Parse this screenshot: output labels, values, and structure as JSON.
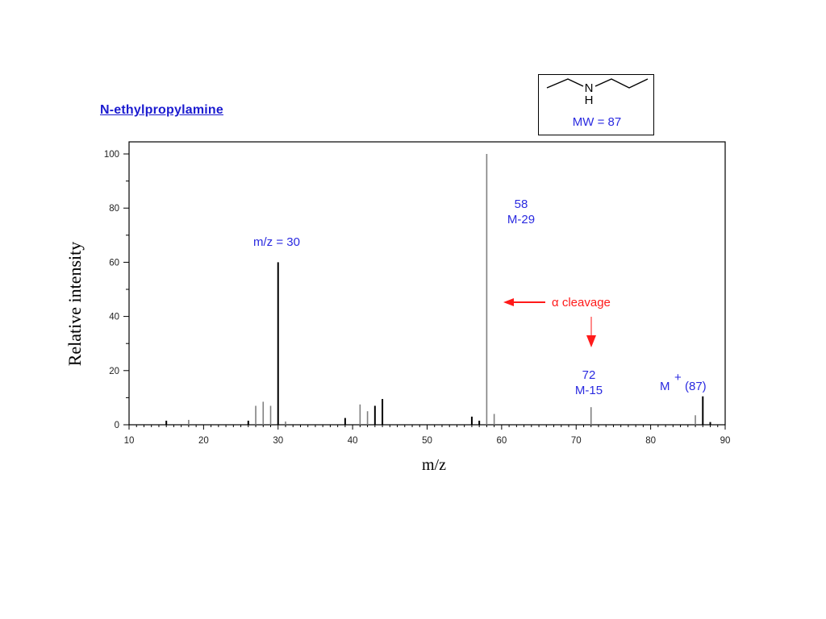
{
  "title": "N-ethylpropylamine",
  "structure": {
    "nh_label": "N",
    "h_label": "H",
    "mw_label": "MW = 87"
  },
  "colors": {
    "annotation": "#2a2ae0",
    "alpha": "#ff1a1a",
    "major_peak": "#000000",
    "minor_peak": "#808080"
  },
  "chart_data": {
    "type": "bar",
    "xlabel": "m/z",
    "ylabel": "Relative intensity",
    "xlim": [
      10,
      90
    ],
    "ylim": [
      0,
      100
    ],
    "xticks": [
      10,
      20,
      30,
      40,
      50,
      60,
      70,
      80,
      90
    ],
    "yticks": [
      0,
      20,
      40,
      60,
      80,
      100
    ],
    "peaks": [
      {
        "mz": 15,
        "value": 1.5,
        "shade": "dark"
      },
      {
        "mz": 18,
        "value": 1.8,
        "shade": "light"
      },
      {
        "mz": 26,
        "value": 1.5,
        "shade": "dark"
      },
      {
        "mz": 27,
        "value": 7,
        "shade": "light"
      },
      {
        "mz": 28,
        "value": 8.5,
        "shade": "light"
      },
      {
        "mz": 29,
        "value": 7,
        "shade": "light"
      },
      {
        "mz": 30,
        "value": 60,
        "shade": "dark"
      },
      {
        "mz": 31,
        "value": 1.2,
        "shade": "light"
      },
      {
        "mz": 39,
        "value": 2.5,
        "shade": "dark"
      },
      {
        "mz": 41,
        "value": 7.5,
        "shade": "light"
      },
      {
        "mz": 42,
        "value": 5,
        "shade": "light"
      },
      {
        "mz": 43,
        "value": 7,
        "shade": "dark"
      },
      {
        "mz": 44,
        "value": 9.5,
        "shade": "dark"
      },
      {
        "mz": 56,
        "value": 3,
        "shade": "dark"
      },
      {
        "mz": 57,
        "value": 1.5,
        "shade": "dark"
      },
      {
        "mz": 58,
        "value": 100,
        "shade": "light"
      },
      {
        "mz": 59,
        "value": 4,
        "shade": "light"
      },
      {
        "mz": 72,
        "value": 6.5,
        "shade": "light"
      },
      {
        "mz": 86,
        "value": 3.5,
        "shade": "light"
      },
      {
        "mz": 87,
        "value": 10.5,
        "shade": "dark"
      },
      {
        "mz": 88,
        "value": 1,
        "shade": "dark"
      }
    ],
    "annotations": {
      "peak30": "m/z = 30",
      "peak58_mz": "58",
      "peak58_loss": "M-29",
      "peak72_mz": "72",
      "peak72_loss": "M-15",
      "molecular_ion": "M",
      "molecular_ion_charge": "+",
      "molecular_ion_mass": "(87)",
      "alpha_label": "α cleavage"
    }
  }
}
